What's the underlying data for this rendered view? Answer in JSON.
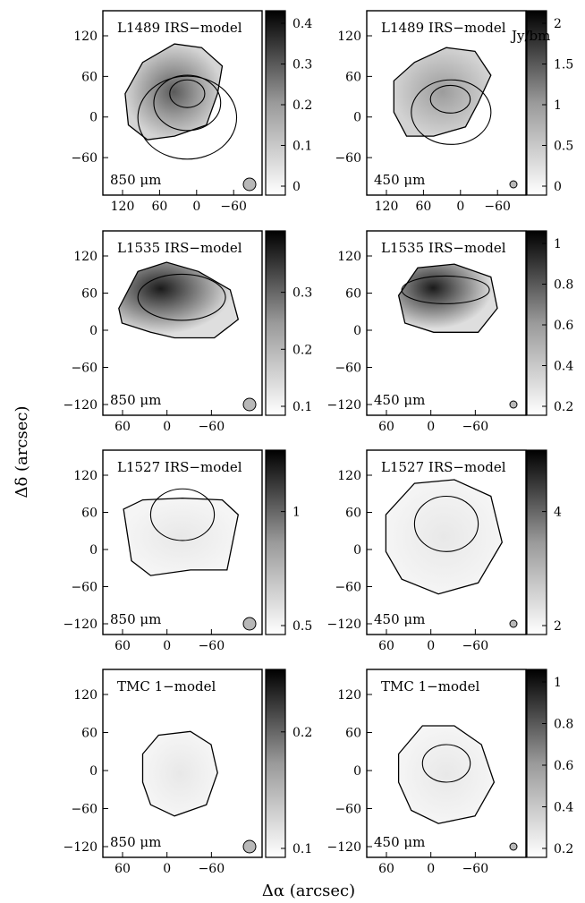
{
  "figure": {
    "y_axis_label": "Δδ (arcsec)",
    "x_axis_label": "Δα (arcsec)",
    "colorbar_unit": "Jy/bm"
  },
  "panels": [
    {
      "id": "l1489-850",
      "title": "L1489 IRS−model",
      "wavelength": "850 μm",
      "xticks": [
        "120",
        "60",
        "0",
        "−60"
      ],
      "yticks": [
        "120",
        "60",
        "0",
        "−60"
      ],
      "cbar_ticks": [
        "0",
        "0.1",
        "0.2",
        "0.3",
        "0.4"
      ]
    },
    {
      "id": "l1489-450",
      "title": "L1489 IRS−model",
      "wavelength": "450 μm",
      "xticks": [
        "120",
        "60",
        "0",
        "−60"
      ],
      "yticks": [
        "120",
        "60",
        "0",
        "−60"
      ],
      "cbar_ticks": [
        "0",
        "0.5",
        "1",
        "1.5",
        "2"
      ]
    },
    {
      "id": "l1535-850",
      "title": "L1535 IRS−model",
      "wavelength": "850 μm",
      "xticks": [
        "60",
        "0",
        "−60"
      ],
      "yticks": [
        "120",
        "60",
        "0",
        "−60",
        "−120"
      ],
      "cbar_ticks": [
        "0.1",
        "0.2",
        "0.3"
      ]
    },
    {
      "id": "l1535-450",
      "title": "L1535 IRS−model",
      "wavelength": "450 μm",
      "xticks": [
        "60",
        "0",
        "−60"
      ],
      "yticks": [
        "120",
        "60",
        "0",
        "−60",
        "−120"
      ],
      "cbar_ticks": [
        "0.2",
        "0.4",
        "0.6",
        "0.8",
        "1"
      ]
    },
    {
      "id": "l1527-850",
      "title": "L1527 IRS−model",
      "wavelength": "850 μm",
      "xticks": [
        "60",
        "0",
        "−60"
      ],
      "yticks": [
        "120",
        "60",
        "0",
        "−60",
        "−120"
      ],
      "cbar_ticks": [
        "0.5",
        "1"
      ]
    },
    {
      "id": "l1527-450",
      "title": "L1527 IRS−model",
      "wavelength": "450 μm",
      "xticks": [
        "60",
        "0",
        "−60"
      ],
      "yticks": [
        "120",
        "60",
        "0",
        "−60",
        "−120"
      ],
      "cbar_ticks": [
        "2",
        "4"
      ]
    },
    {
      "id": "tmc1-850",
      "title": "TMC 1−model",
      "wavelength": "850 μm",
      "xticks": [
        "60",
        "0",
        "−60"
      ],
      "yticks": [
        "120",
        "60",
        "0",
        "−60",
        "−120"
      ],
      "cbar_ticks": [
        "0.1",
        "0.2"
      ]
    },
    {
      "id": "tmc1-450",
      "title": "TMC 1−model",
      "wavelength": "450 μm",
      "xticks": [
        "60",
        "0",
        "−60"
      ],
      "yticks": [
        "120",
        "60",
        "0",
        "−60",
        "−120"
      ],
      "cbar_ticks": [
        "0.2",
        "0.4",
        "0.6",
        "0.8",
        "1"
      ]
    }
  ]
}
